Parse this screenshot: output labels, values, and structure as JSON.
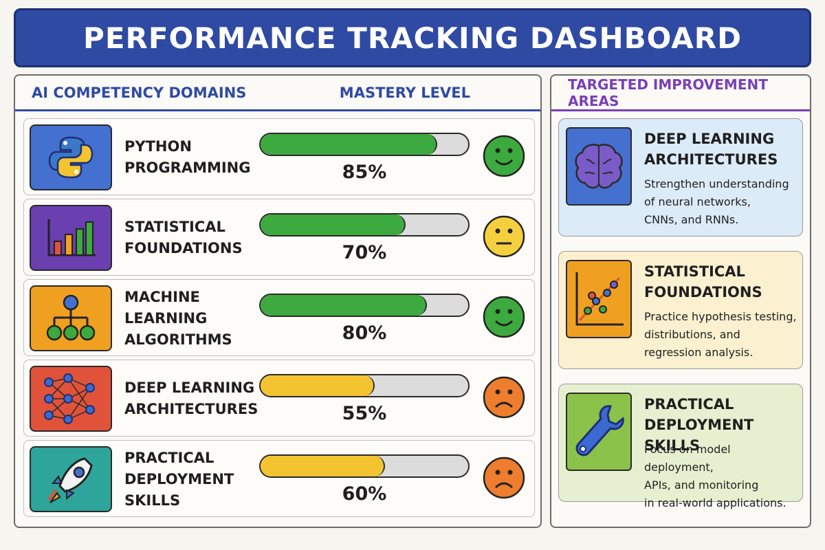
{
  "title": "PERFORMANCE TRACKING DASHBOARD",
  "left_panel": {
    "header_left": "AI COMPETENCY DOMAINS",
    "header_right": "MASTERY LEVEL",
    "rows": [
      {
        "label": "PYTHON\nPROGRAMMING",
        "value": "85%",
        "fraction": 0.85,
        "bar_color": "#3daa3f",
        "icon": "python-logo-icon",
        "icon_bg": "#4470d0",
        "mood": "happy-face-icon",
        "mood_color": "#3daa3f"
      },
      {
        "label": "STATISTICAL\nFOUNDATIONS",
        "value": "70%",
        "fraction": 0.7,
        "bar_color": "#3daa3f",
        "icon": "bar-chart-icon",
        "icon_bg": "#6a3fb0",
        "mood": "neutral-face-icon",
        "mood_color": "#f4d03f"
      },
      {
        "label": "MACHINE LEARNING\nALGORITHMS",
        "value": "80%",
        "fraction": 0.8,
        "bar_color": "#3daa3f",
        "icon": "hierarchy-tree-icon",
        "icon_bg": "#f0a020",
        "mood": "happy-face-icon",
        "mood_color": "#3daa3f"
      },
      {
        "label": "DEEP LEARNING\nARCHITECTURES",
        "value": "55%",
        "fraction": 0.55,
        "bar_color": "#f4c430",
        "icon": "neural-network-icon",
        "icon_bg": "#e0533a",
        "mood": "sad-face-icon",
        "mood_color": "#ee7d2d"
      },
      {
        "label": "PRACTICAL\nDEPLOYMENT\nSKILLS",
        "value": "60%",
        "fraction": 0.6,
        "bar_color": "#f4c430",
        "icon": "rocket-icon",
        "icon_bg": "#2ea59a",
        "mood": "sad-face-icon",
        "mood_color": "#ee7d2d"
      }
    ]
  },
  "right_panel": {
    "header": "TARGETED IMPROVEMENT AREAS",
    "cards": [
      {
        "title": "DEEP LEARNING\nARCHITECTURES",
        "desc": "Strengthen understanding\nof neural networks,\nCNNs, and RNNs.",
        "icon": "brain-icon",
        "bg": "#dcebf8",
        "icon_bg": "#4470d0"
      },
      {
        "title": "STATISTICAL\nFOUNDATIONS",
        "desc": "Practice hypothesis testing,\ndistributions, and\nregression analysis.",
        "icon": "scatter-plot-icon",
        "bg": "#fbf0cf",
        "icon_bg": "#f0a020"
      },
      {
        "title": "PRACTICAL\nDEPLOYMENT SKILLS",
        "desc": "Focus on model deployment,\nAPIs, and monitoring\nin real-world applications.",
        "icon": "wrench-icon",
        "bg": "#e6f0d0",
        "icon_bg": "#8bc34a"
      }
    ]
  }
}
